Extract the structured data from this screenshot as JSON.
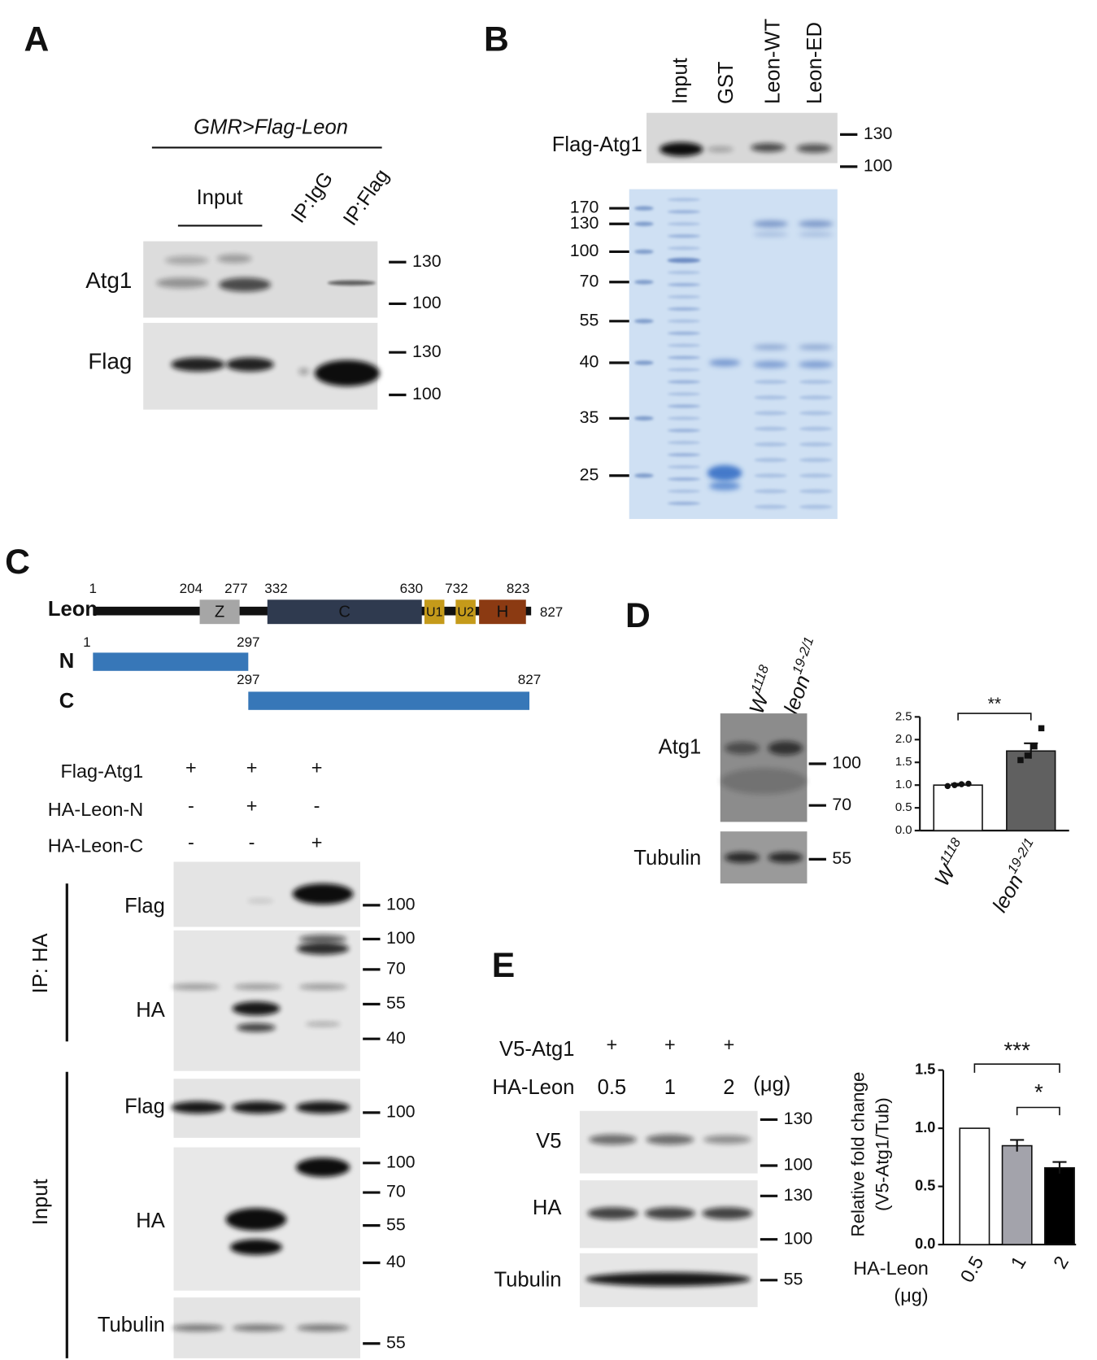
{
  "panel_a": {
    "label": "A",
    "genotype": "GMR>Flag-Leon",
    "lanes": [
      "Input",
      "IP:IgG",
      "IP:Flag"
    ],
    "blots": [
      {
        "name": "Atg1",
        "markers": [
          130,
          100
        ]
      },
      {
        "name": "Flag",
        "markers": [
          130,
          100
        ]
      }
    ]
  },
  "panel_b": {
    "label": "B",
    "lanes": [
      "Input",
      "GST",
      "Leon-WT",
      "Leon-ED"
    ],
    "blot": {
      "name": "Flag-Atg1",
      "markers": [
        130,
        100
      ]
    },
    "gel_markers": [
      170,
      130,
      100,
      70,
      55,
      40,
      35,
      25
    ]
  },
  "panel_c": {
    "label": "C",
    "protein": "Leon",
    "positions": [
      1,
      204,
      277,
      332,
      630,
      732,
      823,
      827
    ],
    "domains": [
      "Z",
      "C",
      "U1",
      "U2",
      "H"
    ],
    "constructs": [
      {
        "name": "N",
        "start": 1,
        "end": 297
      },
      {
        "name": "C",
        "start": 297,
        "end": 827
      }
    ],
    "conditions": [
      {
        "name": "Flag-Atg1",
        "lanes": [
          "+",
          "+",
          "+"
        ]
      },
      {
        "name": "HA-Leon-N",
        "lanes": [
          "-",
          "+",
          "-"
        ]
      },
      {
        "name": "HA-Leon-C",
        "lanes": [
          "-",
          "-",
          "+"
        ]
      }
    ],
    "groups": [
      {
        "name": "IP: HA",
        "blots": [
          {
            "name": "Flag",
            "markers": [
              100
            ]
          },
          {
            "name": "HA",
            "markers": [
              100,
              70,
              55,
              40
            ]
          }
        ]
      },
      {
        "name": "Input",
        "blots": [
          {
            "name": "Flag",
            "markers": [
              100
            ]
          },
          {
            "name": "HA",
            "markers": [
              100,
              70,
              55,
              40
            ]
          },
          {
            "name": "Tubulin",
            "markers": [
              55
            ]
          }
        ]
      }
    ]
  },
  "panel_d": {
    "label": "D",
    "lanes": [
      {
        "base": "W",
        "sup": "1118"
      },
      {
        "base": "leon",
        "sup": "19-2/1"
      }
    ],
    "blots": [
      {
        "name": "Atg1",
        "markers": [
          100,
          70
        ]
      },
      {
        "name": "Tubulin",
        "markers": [
          55
        ]
      }
    ],
    "chart": {
      "type": "bar",
      "categories": [
        {
          "base": "W",
          "sup": "1118"
        },
        {
          "base": "leon",
          "sup": "19-2/1"
        }
      ],
      "values": [
        1.0,
        1.75
      ],
      "errors": [
        0.03,
        0.17
      ],
      "points": [
        [
          0.98,
          1.0,
          1.02,
          1.03
        ],
        [
          1.55,
          1.65,
          1.85,
          2.25
        ]
      ],
      "colors": [
        "#ffffff",
        "#606060"
      ],
      "ylim": [
        0,
        2.5
      ],
      "yticks": [
        {
          "value": 0,
          "label": "0.0"
        },
        {
          "value": 0.5,
          "label": "0.5"
        },
        {
          "value": 1,
          "label": "1.0"
        },
        {
          "value": 1.5,
          "label": "1.5"
        },
        {
          "value": 2,
          "label": "2.0"
        },
        {
          "value": 2.5,
          "label": "2.5"
        }
      ],
      "significance": [
        "**"
      ]
    }
  },
  "panel_e": {
    "label": "E",
    "conditions": [
      {
        "name": "V5-Atg1",
        "lanes": [
          "+",
          "+",
          "+"
        ]
      },
      {
        "name": "HA-Leon",
        "lanes": [
          0.5,
          1,
          2
        ],
        "unit": "(μg)"
      }
    ],
    "blots": [
      {
        "name": "V5",
        "markers": [
          130,
          100
        ]
      },
      {
        "name": "HA",
        "markers": [
          130,
          100
        ]
      },
      {
        "name": "Tubulin",
        "markers": [
          55
        ]
      }
    ],
    "chart": {
      "type": "bar",
      "y_label": [
        "Relative fold change",
        "(V5-Atg1/Tub)"
      ],
      "x_label": [
        "HA-Leon",
        "(μg)"
      ],
      "categories": [
        0.5,
        1,
        2
      ],
      "values": [
        1.0,
        0.85,
        0.66
      ],
      "errors": [
        0,
        0.05,
        0.05
      ],
      "colors": [
        "#ffffff",
        "#a3a3ab",
        "#000000"
      ],
      "ylim": [
        0,
        1.5
      ],
      "yticks": [
        {
          "value": 0,
          "label": "0.0"
        },
        {
          "value": 0.5,
          "label": "0.5"
        },
        {
          "value": 1,
          "label": "1.0"
        },
        {
          "value": 1.5,
          "label": "1.5"
        }
      ],
      "significance": [
        "***",
        "*"
      ]
    }
  }
}
